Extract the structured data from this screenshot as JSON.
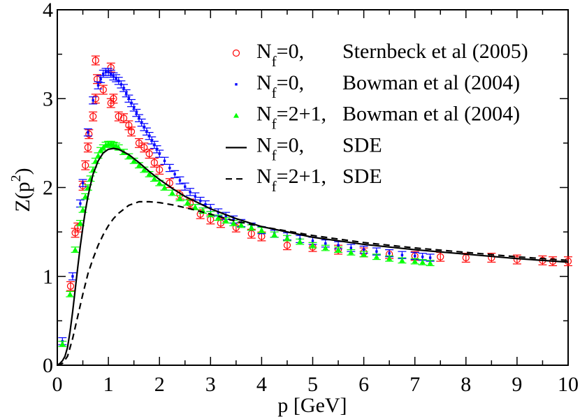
{
  "chart_data": {
    "type": "scatter",
    "xlabel": "p [GeV]",
    "ylabel": {
      "base": "Z(p",
      "sup": "2",
      "close": ")"
    },
    "xlim": [
      0,
      10
    ],
    "ylim": [
      0,
      4
    ],
    "xticks": [
      "0",
      "1",
      "2",
      "3",
      "4",
      "5",
      "6",
      "7",
      "8",
      "9",
      "10"
    ],
    "yticks": [
      "0",
      "1",
      "2",
      "3",
      "4"
    ],
    "grid": false,
    "legend_placement": "top-right",
    "series": [
      {
        "name": "Nf=0, Sternbeck et al (2005)",
        "legend": {
          "sym": "N",
          "sub": "f",
          "eq": "=0,",
          "desc": "Sternbeck et al (2005)"
        },
        "marker": "open-circle",
        "color": "#ff0000",
        "yerr": 0.05,
        "x": [
          0.26,
          0.35,
          0.4,
          0.5,
          0.55,
          0.6,
          0.62,
          0.7,
          0.75,
          0.78,
          0.75,
          0.9,
          1.05,
          1.05,
          1.1,
          1.2,
          1.3,
          1.4,
          1.45,
          1.6,
          1.7,
          1.8,
          1.9,
          2.0,
          2.2,
          2.4,
          2.6,
          2.8,
          3.0,
          3.2,
          3.5,
          3.8,
          4.0,
          4.5,
          5.0,
          5.5,
          6.0,
          6.5,
          7.0,
          7.5,
          8.0,
          8.5,
          9.0,
          9.5,
          9.7,
          10.0
        ],
        "y": [
          0.89,
          1.49,
          1.55,
          2.02,
          2.25,
          2.45,
          2.6,
          2.8,
          3.0,
          3.22,
          3.43,
          3.1,
          3.35,
          2.95,
          3.0,
          2.8,
          2.78,
          2.7,
          2.63,
          2.5,
          2.45,
          2.38,
          2.28,
          2.2,
          2.05,
          1.92,
          1.82,
          1.7,
          1.64,
          1.6,
          1.55,
          1.48,
          1.45,
          1.35,
          1.33,
          1.3,
          1.27,
          1.25,
          1.23,
          1.22,
          1.21,
          1.21,
          1.19,
          1.18,
          1.17,
          1.17
        ]
      },
      {
        "name": "Nf=0, Bowman et al (2004)",
        "legend": {
          "sym": "N",
          "sub": "f",
          "eq": "=0,",
          "desc": "Bowman et al (2004)"
        },
        "marker": "square",
        "color": "#0000ff",
        "yerr": 0.04,
        "x": [
          0.1,
          0.3,
          0.45,
          0.5,
          0.6,
          0.7,
          0.8,
          0.85,
          0.9,
          0.95,
          1.0,
          1.05,
          1.1,
          1.15,
          1.2,
          1.25,
          1.3,
          1.35,
          1.4,
          1.45,
          1.5,
          1.55,
          1.6,
          1.65,
          1.7,
          1.75,
          1.8,
          1.85,
          1.9,
          1.95,
          2.0,
          2.1,
          2.2,
          2.3,
          2.4,
          2.5,
          2.6,
          2.7,
          2.8,
          2.9,
          3.0,
          3.15,
          3.3,
          3.45,
          3.6,
          3.8,
          4.0,
          4.25,
          4.5,
          4.75,
          5.0,
          5.25,
          5.5,
          5.75,
          6.0,
          6.25,
          6.5,
          6.75,
          7.0,
          7.15,
          7.3
        ],
        "y": [
          0.27,
          1.0,
          1.82,
          2.05,
          2.62,
          2.98,
          3.15,
          3.22,
          3.28,
          3.3,
          3.3,
          3.28,
          3.25,
          3.23,
          3.2,
          3.16,
          3.12,
          3.06,
          3.0,
          2.95,
          2.9,
          2.84,
          2.78,
          2.73,
          2.68,
          2.63,
          2.58,
          2.53,
          2.48,
          2.43,
          2.38,
          2.3,
          2.22,
          2.15,
          2.08,
          2.01,
          1.95,
          1.9,
          1.85,
          1.81,
          1.77,
          1.72,
          1.68,
          1.64,
          1.6,
          1.56,
          1.52,
          1.48,
          1.45,
          1.42,
          1.4,
          1.37,
          1.35,
          1.32,
          1.3,
          1.28,
          1.26,
          1.24,
          1.23,
          1.22,
          1.21
        ]
      },
      {
        "name": "Nf=2+1, Bowman et al (2004)",
        "legend": {
          "sym": "N",
          "sub": "f",
          "eq": "=2+1,",
          "desc": "Bowman et al (2004)"
        },
        "marker": "triangle",
        "color": "#00ff00",
        "yerr": 0.03,
        "x": [
          0.1,
          0.25,
          0.35,
          0.45,
          0.5,
          0.55,
          0.6,
          0.65,
          0.7,
          0.75,
          0.8,
          0.85,
          0.9,
          0.95,
          1.0,
          1.05,
          1.1,
          1.15,
          1.2,
          1.3,
          1.4,
          1.5,
          1.6,
          1.7,
          1.8,
          1.9,
          2.0,
          2.1,
          2.25,
          2.4,
          2.55,
          2.7,
          2.85,
          3.0,
          3.15,
          3.3,
          3.45,
          3.6,
          3.8,
          4.0,
          4.25,
          4.5,
          4.75,
          5.0,
          5.25,
          5.5,
          5.75,
          6.0,
          6.25,
          6.5,
          6.75,
          7.0,
          7.15,
          7.3
        ],
        "y": [
          0.24,
          0.8,
          1.3,
          1.6,
          1.75,
          1.9,
          2.0,
          2.1,
          2.2,
          2.3,
          2.36,
          2.42,
          2.45,
          2.48,
          2.49,
          2.49,
          2.48,
          2.47,
          2.45,
          2.4,
          2.35,
          2.3,
          2.25,
          2.2,
          2.15,
          2.1,
          2.05,
          2.0,
          1.94,
          1.88,
          1.83,
          1.78,
          1.74,
          1.7,
          1.66,
          1.63,
          1.6,
          1.58,
          1.55,
          1.52,
          1.47,
          1.43,
          1.39,
          1.35,
          1.32,
          1.3,
          1.27,
          1.25,
          1.22,
          1.2,
          1.18,
          1.17,
          1.16,
          1.15
        ]
      },
      {
        "name": "Nf=0, SDE",
        "legend": {
          "sym": "N",
          "sub": "f",
          "eq": "=0,",
          "desc": "SDE"
        },
        "marker": "line-solid",
        "color": "#000000",
        "x": [
          0.0,
          0.05,
          0.1,
          0.15,
          0.2,
          0.25,
          0.3,
          0.35,
          0.4,
          0.45,
          0.5,
          0.55,
          0.6,
          0.65,
          0.7,
          0.8,
          0.9,
          1.0,
          1.1,
          1.2,
          1.3,
          1.4,
          1.6,
          1.8,
          2.0,
          2.25,
          2.5,
          2.75,
          3.0,
          3.5,
          4.0,
          4.5,
          5.0,
          6.0,
          7.0,
          8.0,
          9.0,
          10.0
        ],
        "y": [
          0.0,
          0.02,
          0.05,
          0.1,
          0.2,
          0.38,
          0.6,
          0.85,
          1.1,
          1.34,
          1.55,
          1.74,
          1.9,
          2.03,
          2.15,
          2.3,
          2.39,
          2.43,
          2.44,
          2.43,
          2.4,
          2.37,
          2.28,
          2.18,
          2.09,
          1.99,
          1.9,
          1.83,
          1.76,
          1.65,
          1.56,
          1.5,
          1.44,
          1.36,
          1.3,
          1.25,
          1.2,
          1.16
        ]
      },
      {
        "name": "Nf=2+1, SDE",
        "legend": {
          "sym": "N",
          "sub": "f",
          "eq": "=2+1,",
          "desc": "SDE"
        },
        "marker": "line-dashed",
        "color": "#000000",
        "x": [
          0.0,
          0.1,
          0.2,
          0.3,
          0.4,
          0.5,
          0.6,
          0.7,
          0.8,
          0.9,
          1.0,
          1.1,
          1.2,
          1.4,
          1.6,
          1.8,
          2.0,
          2.3,
          2.6,
          3.0,
          3.5,
          4.0,
          5.0,
          6.0,
          7.0,
          8.0,
          9.0,
          10.0
        ],
        "y": [
          0.0,
          0.02,
          0.1,
          0.3,
          0.55,
          0.8,
          1.03,
          1.2,
          1.35,
          1.47,
          1.57,
          1.65,
          1.71,
          1.8,
          1.84,
          1.84,
          1.83,
          1.8,
          1.76,
          1.7,
          1.62,
          1.56,
          1.46,
          1.38,
          1.32,
          1.27,
          1.22,
          1.18
        ]
      }
    ]
  }
}
